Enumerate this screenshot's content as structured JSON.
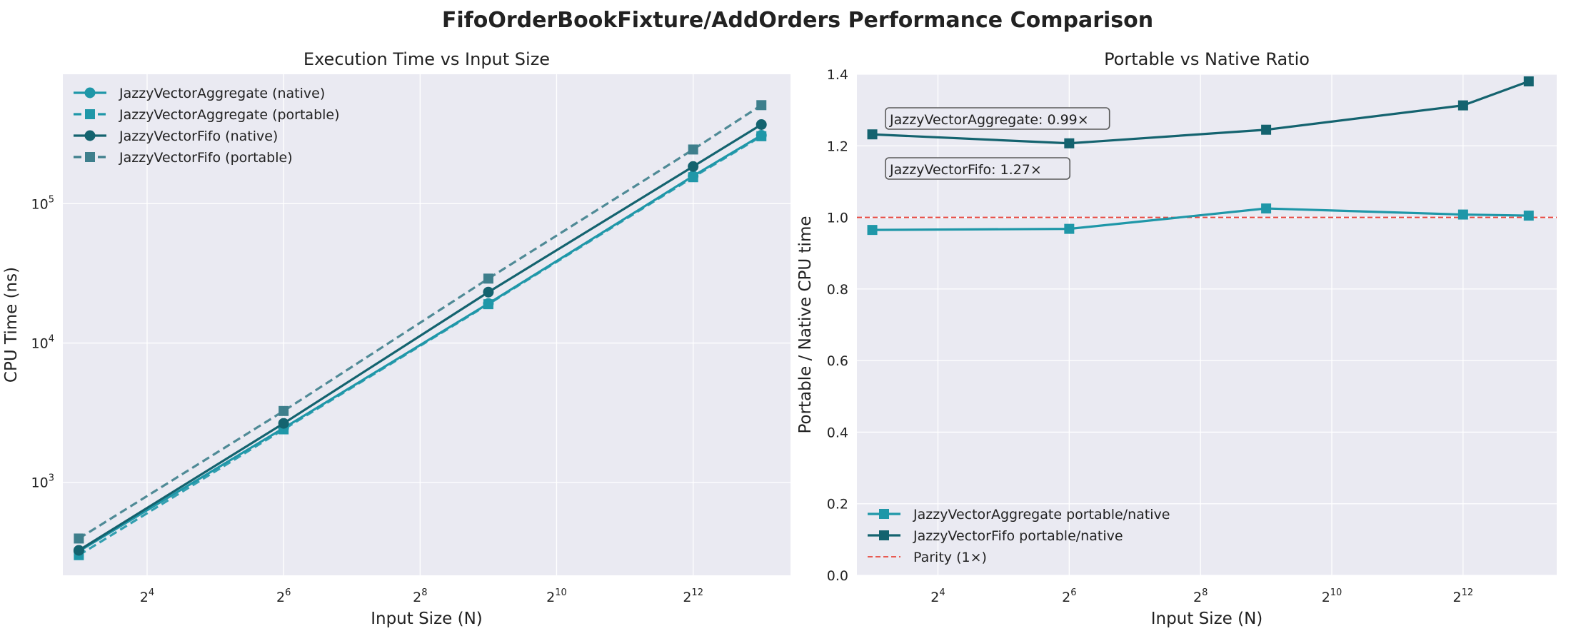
{
  "figure": {
    "title": "FifoOrderBookFixture/AddOrders Performance Comparison"
  },
  "colors": {
    "plot_bg": "#EAEAF2",
    "grid": "#FFFFFF",
    "aggregate": "#1F97A8",
    "fifo": "#14636F",
    "fifo_portable": "#3E7F8C",
    "parity": "#E8453C",
    "annotation_border": "#5A5A5A"
  },
  "chart_data": [
    {
      "type": "line",
      "title": "Execution Time vs Input Size",
      "xlabel": "Input Size (N)",
      "ylabel": "CPU Time (ns)",
      "xscale": "log2",
      "yscale": "log10",
      "xlim": [
        6.8,
        11010
      ],
      "ylim": [
        215,
        850000
      ],
      "xticks": [
        16,
        64,
        256,
        1024,
        4096
      ],
      "xtick_base": "2",
      "xtick_exponents": [
        "4",
        "6",
        "8",
        "10",
        "12"
      ],
      "yticks": [
        1000,
        10000,
        100000
      ],
      "ytick_base": "10",
      "ytick_exponents": [
        "3",
        "4",
        "5"
      ],
      "grid": true,
      "legend_position": "upper-left",
      "x": [
        8,
        64,
        512,
        4096,
        8192
      ],
      "series": [
        {
          "name": "JazzyVectorAggregate (native)",
          "values": [
            320,
            2450,
            19200,
            158000,
            310000
          ],
          "marker": "circle",
          "dash": "solid",
          "color_key": "aggregate"
        },
        {
          "name": "JazzyVectorAggregate (portable)",
          "values": [
            300,
            2400,
            19000,
            155000,
            305000
          ],
          "marker": "square",
          "dash": "dashed",
          "color_key": "aggregate"
        },
        {
          "name": "JazzyVectorFifo (native)",
          "values": [
            325,
            2650,
            23200,
            185000,
            370000
          ],
          "marker": "circle",
          "dash": "solid",
          "color_key": "fifo"
        },
        {
          "name": "JazzyVectorFifo (portable)",
          "values": [
            395,
            3250,
            29000,
            245000,
            510000
          ],
          "marker": "square",
          "dash": "dashed",
          "color_key": "fifo_portable"
        }
      ]
    },
    {
      "type": "line",
      "title": "Portable vs Native Ratio",
      "xlabel": "Input Size (N)",
      "ylabel": "Portable / Native CPU time",
      "xscale": "log2",
      "xlim": [
        6.8,
        11010
      ],
      "ylim": [
        0.0,
        1.4
      ],
      "xticks": [
        16,
        64,
        256,
        1024,
        4096
      ],
      "xtick_base": "2",
      "xtick_exponents": [
        "4",
        "6",
        "8",
        "10",
        "12"
      ],
      "yticks": [
        "0.0",
        "0.2",
        "0.4",
        "0.6",
        "0.8",
        "1.0",
        "1.2",
        "1.4"
      ],
      "grid": true,
      "legend_position": "lower-left",
      "x": [
        8,
        64,
        512,
        4096,
        8192
      ],
      "series": [
        {
          "name": "JazzyVectorAggregate portable/native",
          "values": [
            0.965,
            0.968,
            1.025,
            1.008,
            1.005
          ],
          "marker": "square",
          "dash": "solid",
          "color_key": "aggregate"
        },
        {
          "name": "JazzyVectorFifo portable/native",
          "values": [
            1.232,
            1.207,
            1.245,
            1.313,
            1.38
          ],
          "marker": "square",
          "dash": "solid",
          "color_key": "fifo"
        }
      ],
      "reference_line": {
        "name": "Parity (1×)",
        "y": 1.0
      },
      "annotations": [
        {
          "text": "JazzyVectorAggregate: 0.99×"
        },
        {
          "text": "JazzyVectorFifo: 1.27×"
        }
      ]
    }
  ]
}
